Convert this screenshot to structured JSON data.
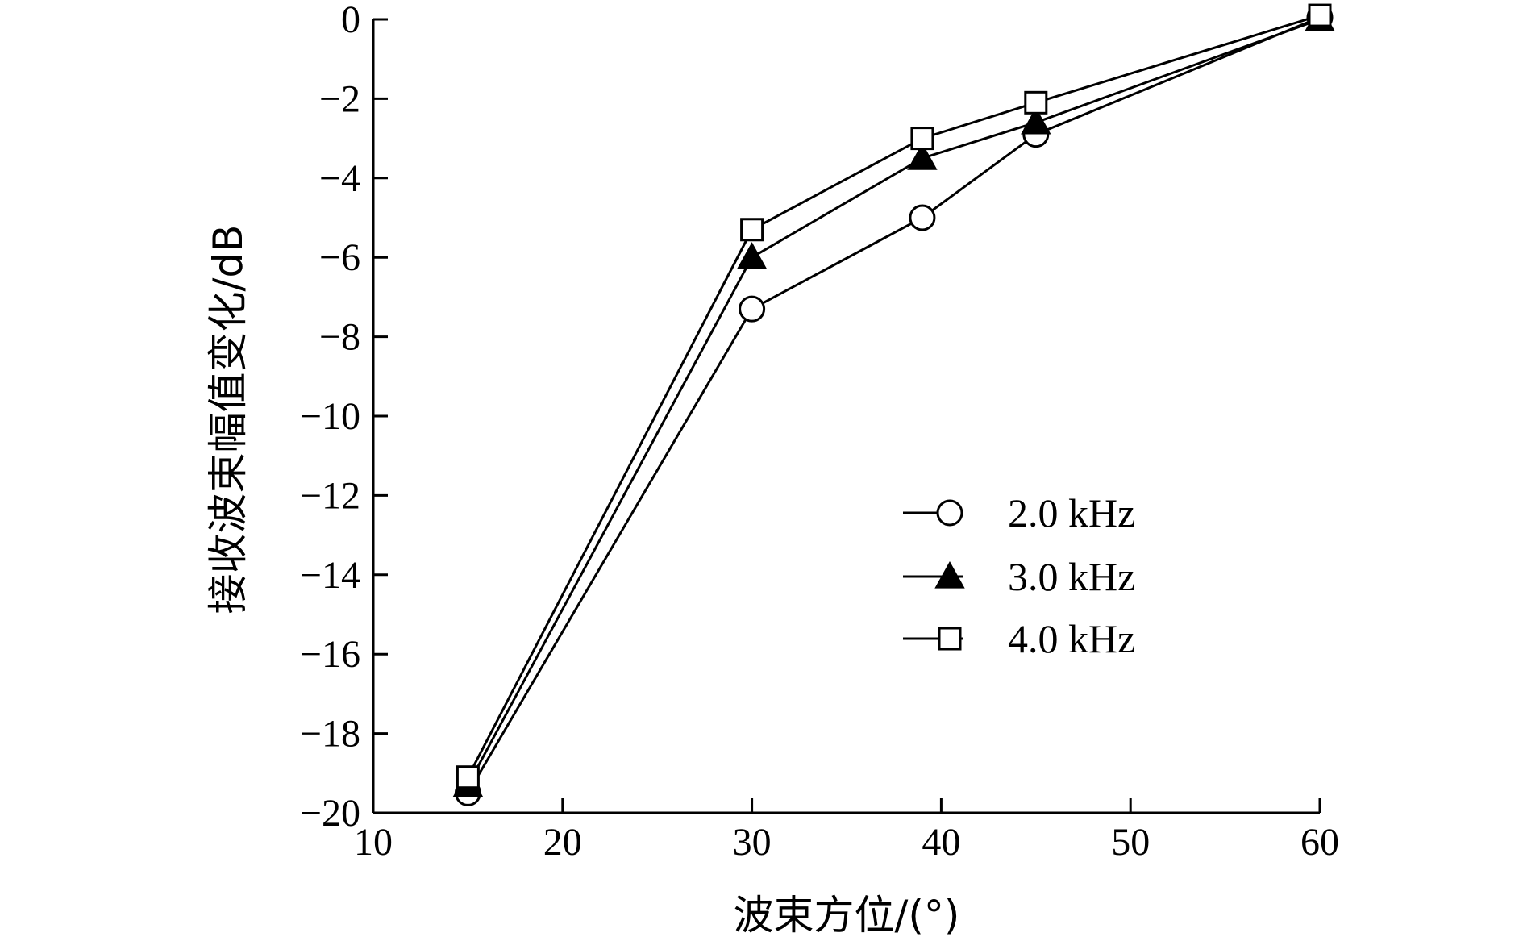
{
  "chart_data": {
    "type": "line",
    "title": "",
    "xlabel": "波束方位/(°)",
    "ylabel": "接收波束幅值变化/dB",
    "xlim": [
      10,
      60
    ],
    "ylim": [
      -20,
      0
    ],
    "xticks": [
      10,
      20,
      30,
      40,
      50,
      60
    ],
    "yticks": [
      0,
      -2,
      -4,
      -6,
      -8,
      -10,
      -12,
      -14,
      -16,
      -18,
      -20
    ],
    "x_tick_labels": [
      "10",
      "20",
      "30",
      "40",
      "50",
      "60"
    ],
    "y_tick_labels": [
      "0",
      "−2",
      "−4",
      "−6",
      "−8",
      "−10",
      "−12",
      "−14",
      "−16",
      "−18",
      "−20"
    ],
    "grid": false,
    "legend_position": "center-right",
    "series": [
      {
        "name": "2.0 kHz",
        "marker": "circle-open",
        "x": [
          15,
          30,
          39,
          45,
          60
        ],
        "y": [
          -19.5,
          -7.3,
          -5.0,
          -2.9,
          0.05
        ]
      },
      {
        "name": "3.0 kHz",
        "marker": "triangle-filled",
        "x": [
          15,
          30,
          39,
          45,
          60
        ],
        "y": [
          -19.3,
          -6.0,
          -3.5,
          -2.6,
          0.0
        ]
      },
      {
        "name": "4.0 kHz",
        "marker": "square-open",
        "x": [
          15,
          30,
          39,
          45,
          60
        ],
        "y": [
          -19.1,
          -5.3,
          -3.0,
          -2.1,
          0.1
        ]
      }
    ]
  }
}
